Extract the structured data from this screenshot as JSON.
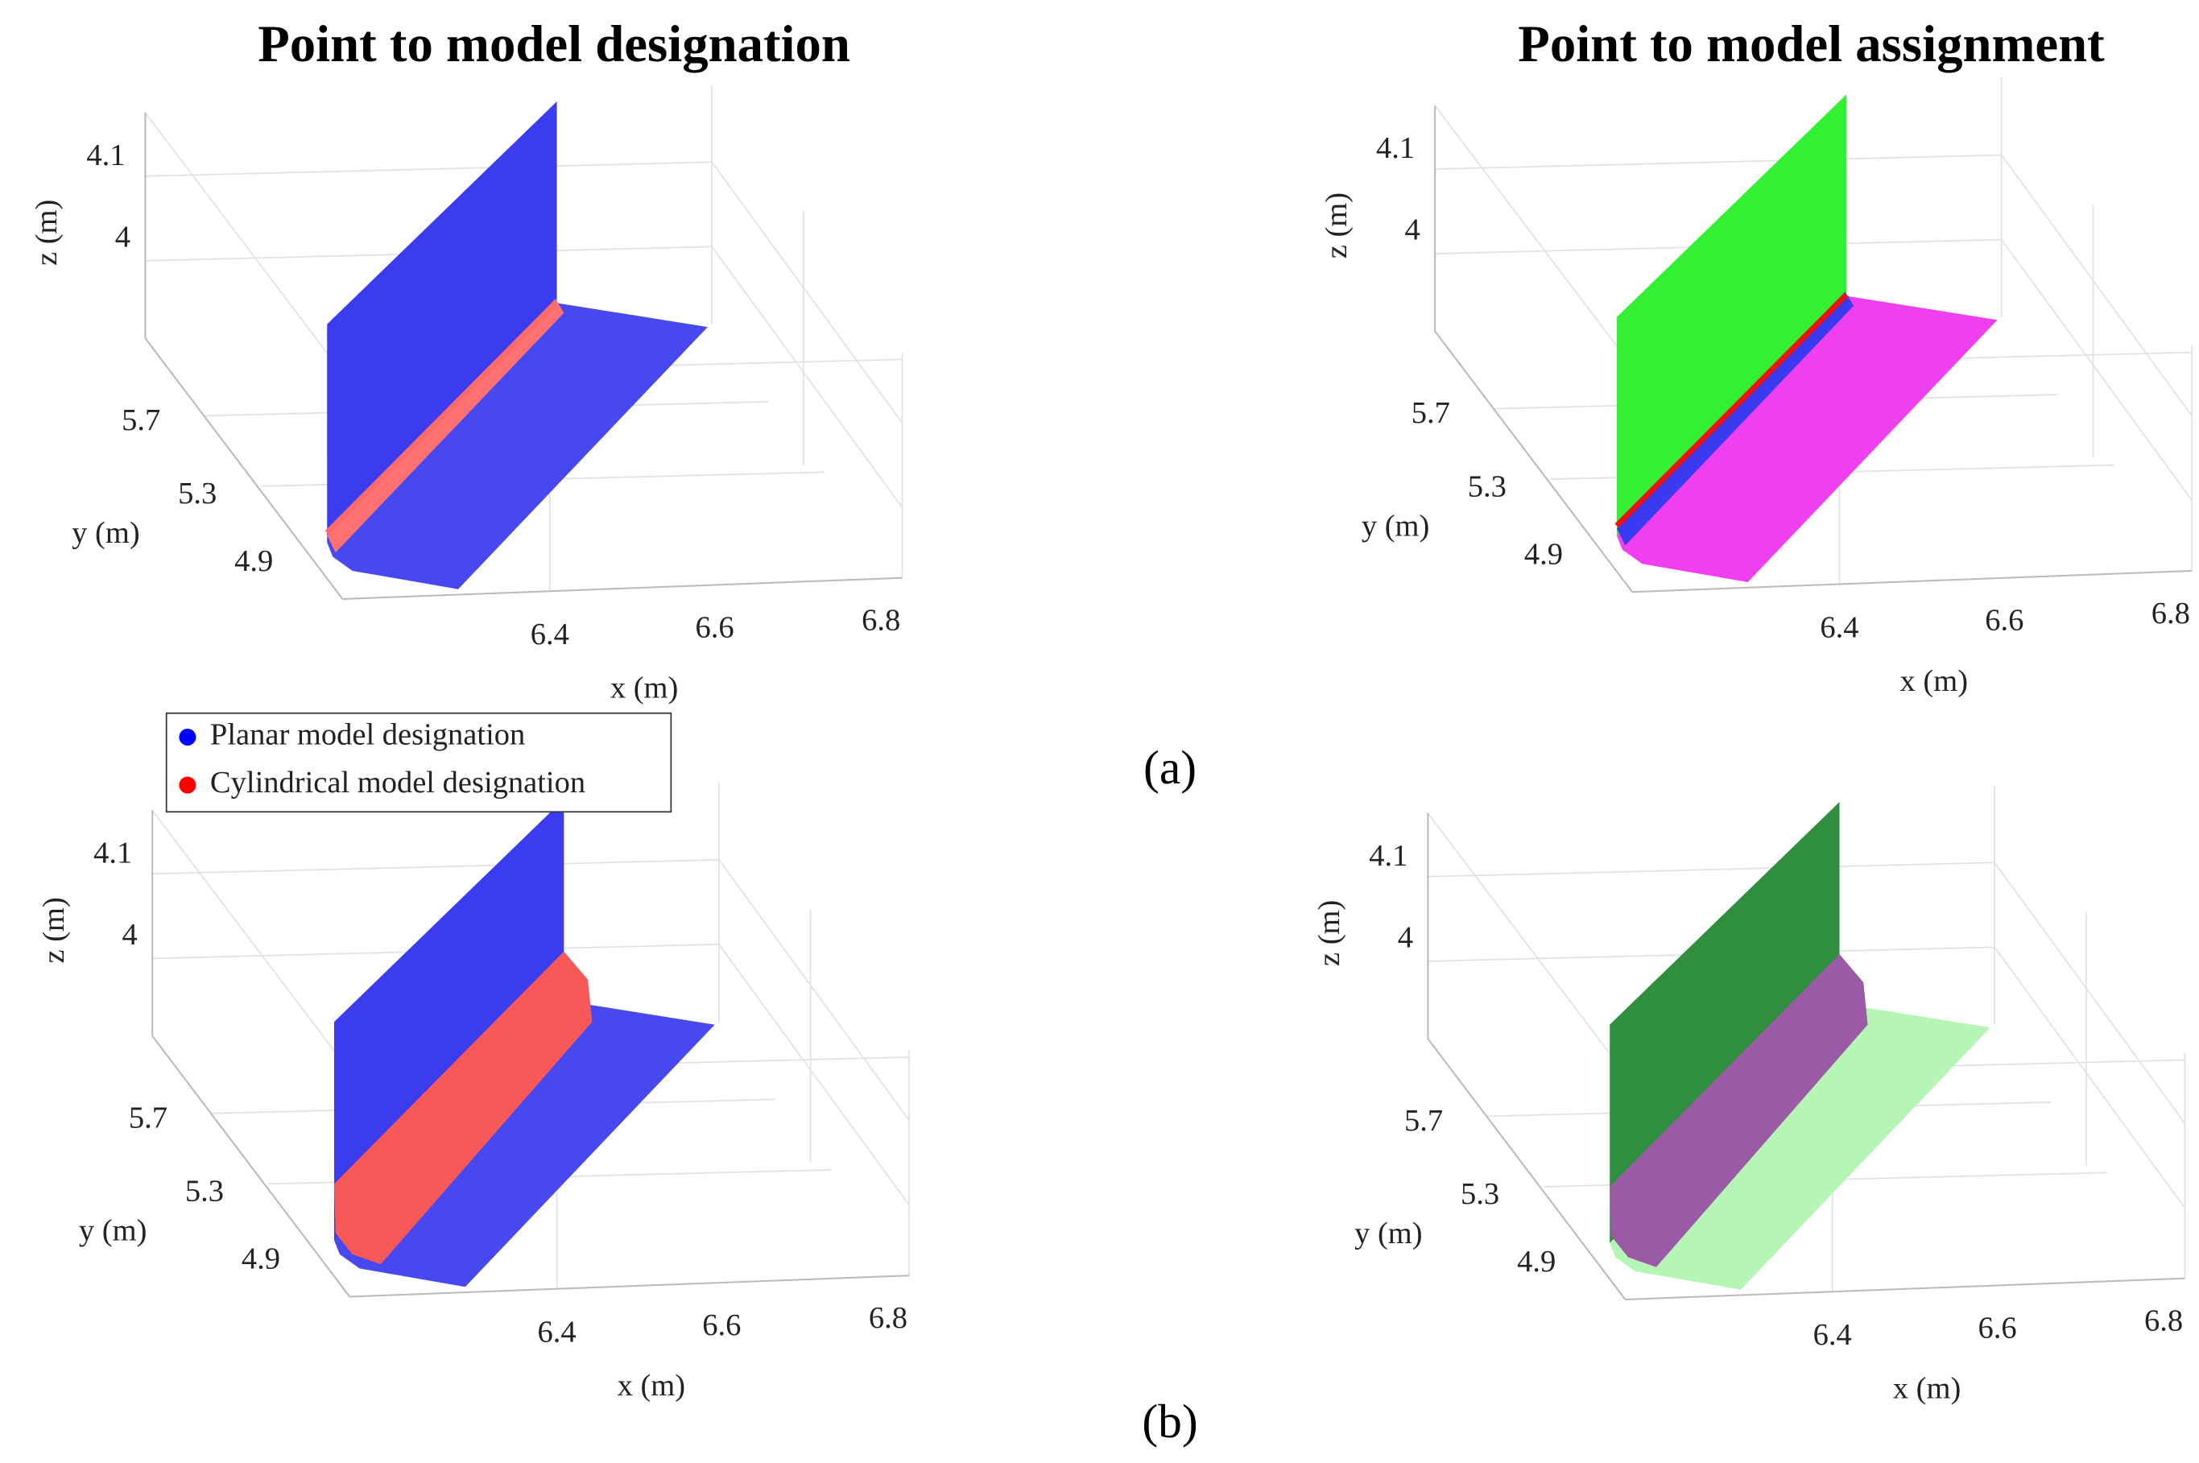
{
  "titles": [
    "Point to model designation",
    "Point to model assignment"
  ],
  "captions": [
    "(a)",
    "(b)"
  ],
  "legend": [
    "Planar model designation",
    "Cylindrical model designation"
  ],
  "panels": [
    {
      "z_label": "z (m)",
      "y_label": "y (m)",
      "x_label": "x (m)",
      "z_ticks": [
        "4.1",
        "4"
      ],
      "y_ticks": [
        "5.7",
        "5.3",
        "4.9"
      ],
      "x_ticks": [
        "6.4",
        "6.6",
        "6.8"
      ]
    },
    {
      "z_label": "z (m)",
      "y_label": "y (m)",
      "x_label": "x (m)",
      "z_ticks": [
        "4.1",
        "4"
      ],
      "y_ticks": [
        "5.7",
        "5.3",
        "4.9"
      ],
      "x_ticks": [
        "6.4",
        "6.6",
        "6.8"
      ]
    },
    {
      "z_label": "z (m)",
      "y_label": "y (m)",
      "x_label": "x (m)",
      "z_ticks": [
        "4.1",
        "4"
      ],
      "y_ticks": [
        "5.7",
        "5.3",
        "4.9"
      ],
      "x_ticks": [
        "6.4",
        "6.6",
        "6.8"
      ]
    },
    {
      "z_label": "z (m)",
      "y_label": "y (m)",
      "x_label": "x (m)",
      "z_ticks": [
        "4.1",
        "4"
      ],
      "y_ticks": [
        "5.7",
        "5.3",
        "4.9"
      ],
      "x_ticks": [
        "6.4",
        "6.6",
        "6.8"
      ]
    }
  ]
}
